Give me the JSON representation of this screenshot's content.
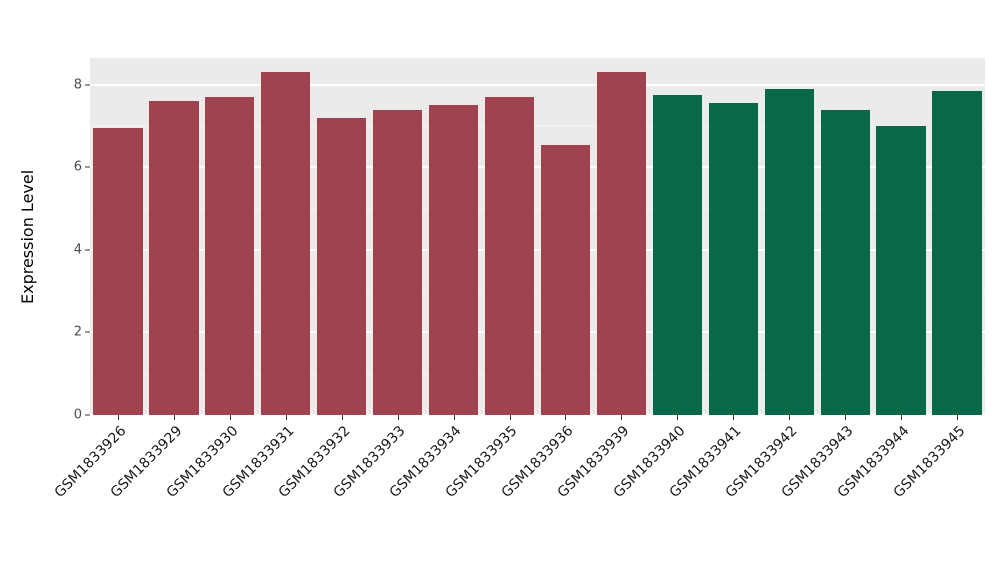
{
  "chart_data": {
    "type": "bar",
    "title": "",
    "xlabel": "",
    "ylabel": "Expression Level",
    "categories": [
      "GSM1833926",
      "GSM1833929",
      "GSM1833930",
      "GSM1833931",
      "GSM1833932",
      "GSM1833933",
      "GSM1833934",
      "GSM1833935",
      "GSM1833936",
      "GSM1833939",
      "GSM1833940",
      "GSM1833941",
      "GSM1833942",
      "GSM1833943",
      "GSM1833944",
      "GSM1833945"
    ],
    "values": [
      6.95,
      7.6,
      7.7,
      8.3,
      7.2,
      7.4,
      7.5,
      7.7,
      6.55,
      8.3,
      7.75,
      7.55,
      7.9,
      7.4,
      7.0,
      7.85
    ],
    "bar_colors": [
      "#A0424F",
      "#A0424F",
      "#A0424F",
      "#A0424F",
      "#A0424F",
      "#A0424F",
      "#A0424F",
      "#A0424F",
      "#A0424F",
      "#A0424F",
      "#07694A",
      "#07694A",
      "#07694A",
      "#07694A",
      "#07694A",
      "#07694A"
    ],
    "group_colors": {
      "group1": "#A0424F",
      "group2": "#07694A"
    },
    "ylim": [
      0,
      8.65
    ],
    "yticks": [
      0,
      2,
      4,
      6,
      8
    ],
    "yticks_minor": [
      1,
      3,
      5,
      7
    ],
    "grid": true,
    "legend": "none",
    "panel_background": "#EBEBEB",
    "gridline_color": "#FFFFFF"
  }
}
